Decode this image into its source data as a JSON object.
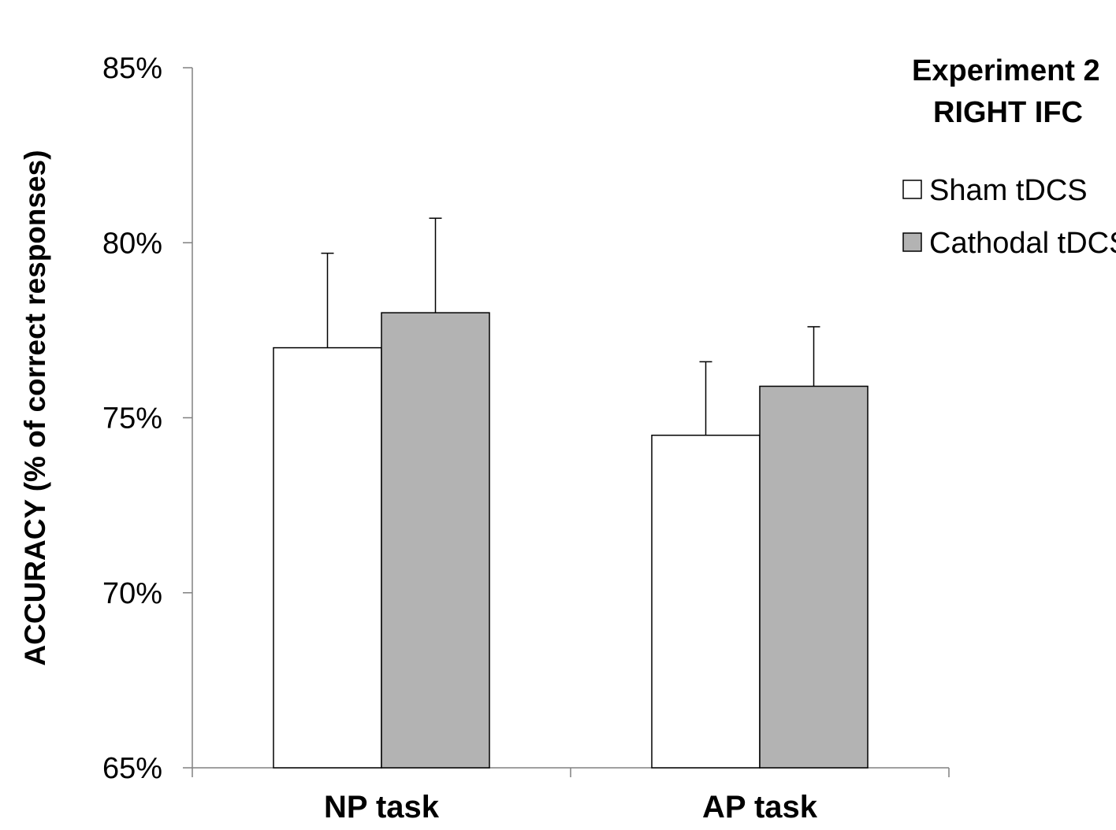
{
  "chart_data": {
    "type": "bar",
    "title": [
      "Experiment 2",
      "RIGHT IFC"
    ],
    "xlabel": "",
    "ylabel": "ACCURACY (% of correct responses)",
    "ylim": [
      0.65,
      0.85
    ],
    "yticks": [
      0.65,
      0.7,
      0.75,
      0.8,
      0.85
    ],
    "ytick_labels": [
      "65%",
      "70%",
      "75%",
      "80%",
      "85%"
    ],
    "categories": [
      "NP task",
      "AP task"
    ],
    "series": [
      {
        "name": "Sham tDCS",
        "values": [
          0.77,
          0.745
        ],
        "errors": [
          0.027,
          0.021
        ],
        "color": "#ffffff"
      },
      {
        "name": "Cathodal tDCS",
        "values": [
          0.78,
          0.759
        ],
        "errors": [
          0.027,
          0.017
        ],
        "color": "#b3b3b3"
      }
    ],
    "grid": false,
    "legend_position": "top-right",
    "error_bars": "upper only"
  }
}
